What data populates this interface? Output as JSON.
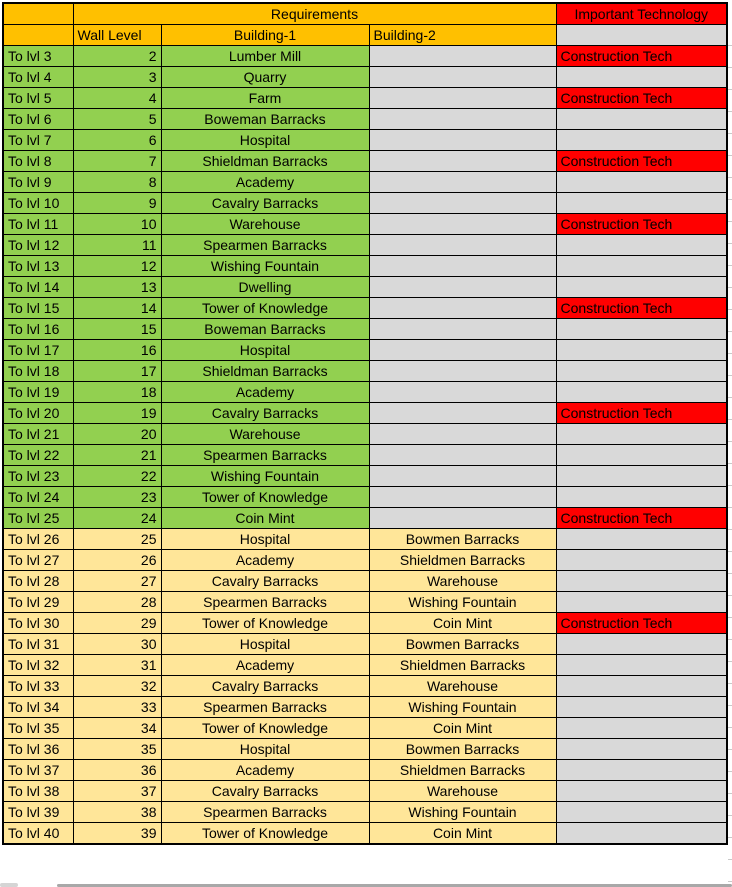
{
  "colors": {
    "orange": "#FFC000",
    "green": "#92D050",
    "yellow": "#FFE699",
    "red": "#FF0000",
    "gray": "#D9D9D9",
    "border": "#000000"
  },
  "header": {
    "requirements": "Requirements",
    "important_technology": "Important Technology",
    "wall_level": "Wall Level",
    "building1": "Building-1",
    "building2": "Building-2"
  },
  "rows": [
    {
      "level": "To lvl 3",
      "wall": "2",
      "b1": "Lumber Mill",
      "b2": "",
      "tech": "Construction Tech",
      "section": "green"
    },
    {
      "level": "To lvl 4",
      "wall": "3",
      "b1": "Quarry",
      "b2": "",
      "tech": "",
      "section": "green"
    },
    {
      "level": "To lvl 5",
      "wall": "4",
      "b1": "Farm",
      "b2": "",
      "tech": "Construction Tech",
      "section": "green"
    },
    {
      "level": "To lvl 6",
      "wall": "5",
      "b1": "Boweman Barracks",
      "b2": "",
      "tech": "",
      "section": "green"
    },
    {
      "level": "To lvl 7",
      "wall": "6",
      "b1": "Hospital",
      "b2": "",
      "tech": "",
      "section": "green"
    },
    {
      "level": "To lvl 8",
      "wall": "7",
      "b1": "Shieldman Barracks",
      "b2": "",
      "tech": "Construction Tech",
      "section": "green"
    },
    {
      "level": "To lvl 9",
      "wall": "8",
      "b1": "Academy",
      "b2": "",
      "tech": "",
      "section": "green"
    },
    {
      "level": "To lvl 10",
      "wall": "9",
      "b1": "Cavalry Barracks",
      "b2": "",
      "tech": "",
      "section": "green"
    },
    {
      "level": "To lvl 11",
      "wall": "10",
      "b1": "Warehouse",
      "b2": "",
      "tech": "Construction Tech",
      "section": "green"
    },
    {
      "level": "To lvl 12",
      "wall": "11",
      "b1": "Spearmen Barracks",
      "b2": "",
      "tech": "",
      "section": "green"
    },
    {
      "level": "To lvl 13",
      "wall": "12",
      "b1": "Wishing Fountain",
      "b2": "",
      "tech": "",
      "section": "green"
    },
    {
      "level": "To lvl 14",
      "wall": "13",
      "b1": "Dwelling",
      "b2": "",
      "tech": "",
      "section": "green"
    },
    {
      "level": "To lvl 15",
      "wall": "14",
      "b1": "Tower of Knowledge",
      "b2": "",
      "tech": "Construction Tech",
      "section": "green"
    },
    {
      "level": "To lvl 16",
      "wall": "15",
      "b1": "Boweman Barracks",
      "b2": "",
      "tech": "",
      "section": "green"
    },
    {
      "level": "To lvl 17",
      "wall": "16",
      "b1": "Hospital",
      "b2": "",
      "tech": "",
      "section": "green"
    },
    {
      "level": "To lvl 18",
      "wall": "17",
      "b1": "Shieldman Barracks",
      "b2": "",
      "tech": "",
      "section": "green"
    },
    {
      "level": "To lvl 19",
      "wall": "18",
      "b1": "Academy",
      "b2": "",
      "tech": "",
      "section": "green"
    },
    {
      "level": "To lvl 20",
      "wall": "19",
      "b1": "Cavalry Barracks",
      "b2": "",
      "tech": "Construction Tech",
      "section": "green"
    },
    {
      "level": "To lvl 21",
      "wall": "20",
      "b1": "Warehouse",
      "b2": "",
      "tech": "",
      "section": "green"
    },
    {
      "level": "To lvl 22",
      "wall": "21",
      "b1": "Spearmen Barracks",
      "b2": "",
      "tech": "",
      "section": "green"
    },
    {
      "level": "To lvl 23",
      "wall": "22",
      "b1": "Wishing Fountain",
      "b2": "",
      "tech": "",
      "section": "green"
    },
    {
      "level": "To lvl 24",
      "wall": "23",
      "b1": "Tower of Knowledge",
      "b2": "",
      "tech": "",
      "section": "green"
    },
    {
      "level": "To lvl 25",
      "wall": "24",
      "b1": "Coin Mint",
      "b2": "",
      "tech": "Construction Tech",
      "section": "green"
    },
    {
      "level": "To lvl 26",
      "wall": "25",
      "b1": "Hospital",
      "b2": "Bowmen Barracks",
      "tech": "",
      "section": "yellow"
    },
    {
      "level": "To lvl 27",
      "wall": "26",
      "b1": "Academy",
      "b2": "Shieldmen Barracks",
      "tech": "",
      "section": "yellow"
    },
    {
      "level": "To lvl 28",
      "wall": "27",
      "b1": "Cavalry Barracks",
      "b2": "Warehouse",
      "tech": "",
      "section": "yellow"
    },
    {
      "level": "To lvl 29",
      "wall": "28",
      "b1": "Spearmen Barracks",
      "b2": "Wishing Fountain",
      "tech": "",
      "section": "yellow"
    },
    {
      "level": "To lvl 30",
      "wall": "29",
      "b1": "Tower of Knowledge",
      "b2": "Coin Mint",
      "tech": "Construction Tech",
      "section": "yellow"
    },
    {
      "level": "To lvl 31",
      "wall": "30",
      "b1": "Hospital",
      "b2": "Bowmen Barracks",
      "tech": "",
      "section": "yellow"
    },
    {
      "level": "To lvl 32",
      "wall": "31",
      "b1": "Academy",
      "b2": "Shieldmen Barracks",
      "tech": "",
      "section": "yellow"
    },
    {
      "level": "To lvl 33",
      "wall": "32",
      "b1": "Cavalry Barracks",
      "b2": "Warehouse",
      "tech": "",
      "section": "yellow"
    },
    {
      "level": "To lvl 34",
      "wall": "33",
      "b1": "Spearmen Barracks",
      "b2": "Wishing Fountain",
      "tech": "",
      "section": "yellow"
    },
    {
      "level": "To lvl 35",
      "wall": "34",
      "b1": "Tower of Knowledge",
      "b2": "Coin Mint",
      "tech": "",
      "section": "yellow"
    },
    {
      "level": "To lvl 36",
      "wall": "35",
      "b1": "Hospital",
      "b2": "Bowmen Barracks",
      "tech": "",
      "section": "yellow"
    },
    {
      "level": "To lvl 37",
      "wall": "36",
      "b1": "Academy",
      "b2": "Shieldmen Barracks",
      "tech": "",
      "section": "yellow"
    },
    {
      "level": "To lvl 38",
      "wall": "37",
      "b1": "Cavalry Barracks",
      "b2": "Warehouse",
      "tech": "",
      "section": "yellow"
    },
    {
      "level": "To lvl 39",
      "wall": "38",
      "b1": "Spearmen Barracks",
      "b2": "Wishing Fountain",
      "tech": "",
      "section": "yellow"
    },
    {
      "level": "To lvl 40",
      "wall": "39",
      "b1": "Tower of Knowledge",
      "b2": "Coin Mint",
      "tech": "",
      "section": "yellow"
    }
  ]
}
